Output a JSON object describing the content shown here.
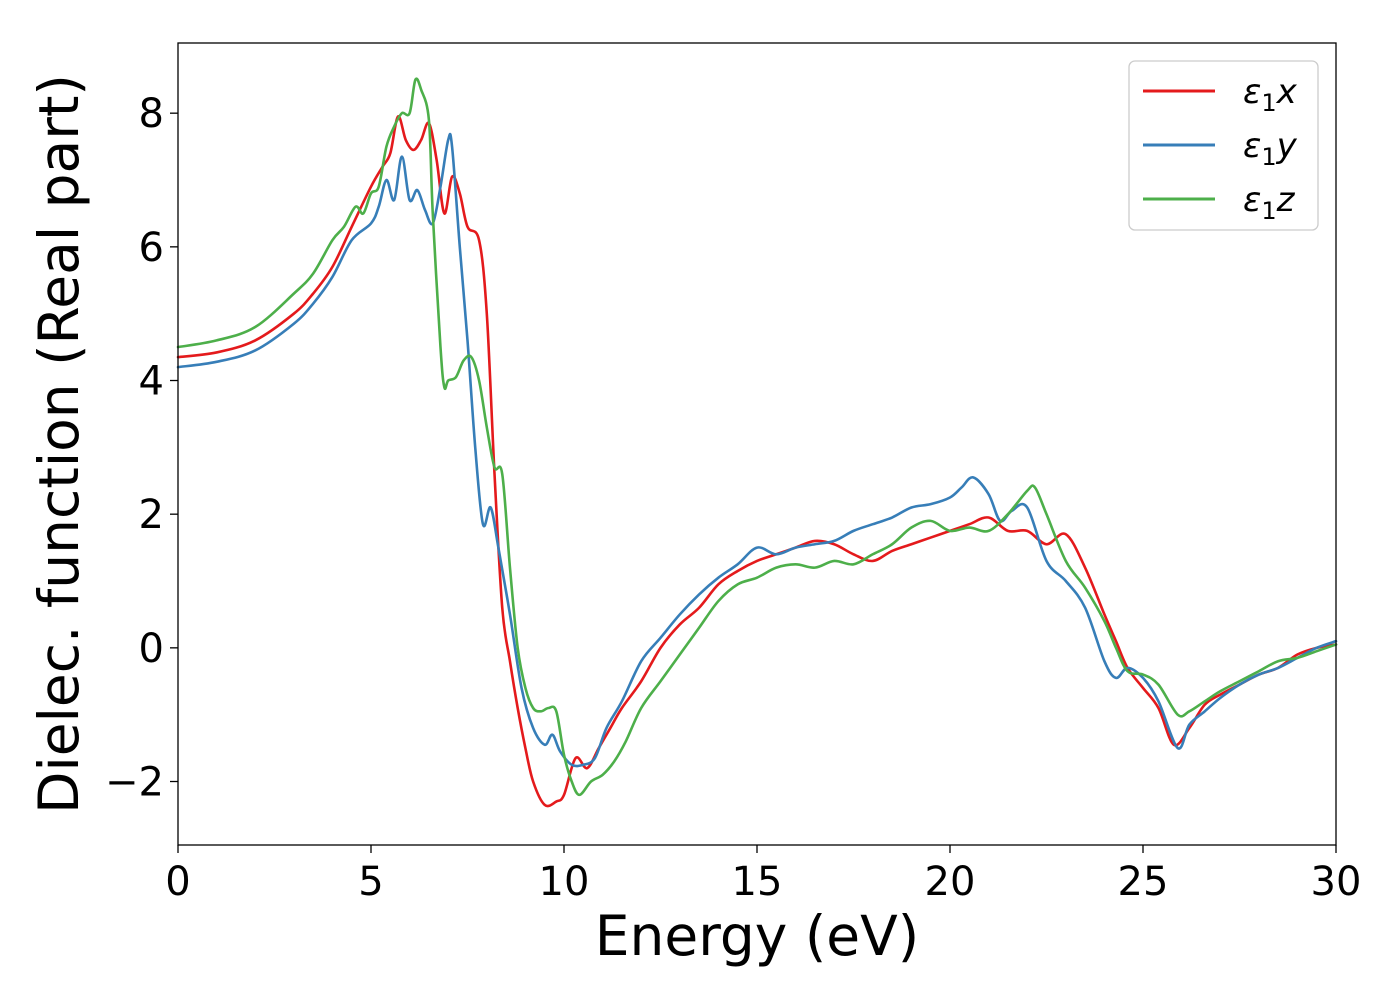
{
  "chart_data": {
    "type": "line",
    "title": "",
    "xlabel": "Energy (eV)",
    "ylabel": "Dielec. function (Real part)",
    "xlim": [
      0,
      30
    ],
    "ylim": [
      -2.95,
      9.05
    ],
    "xticks": [
      0,
      5,
      10,
      15,
      20,
      25,
      30
    ],
    "xtick_labels": [
      "0",
      "5",
      "10",
      "15",
      "20",
      "25",
      "30"
    ],
    "yticks": [
      -2,
      0,
      2,
      4,
      6,
      8
    ],
    "ytick_labels": [
      "−2",
      "0",
      "2",
      "4",
      "6",
      "8"
    ],
    "grid": false,
    "legend_position": "top-right",
    "series": [
      {
        "name": "ε",
        "name_sub": "1",
        "name_suffix": "x",
        "color": "#e41a1c",
        "x": [
          0,
          1,
          2,
          3,
          3.5,
          4,
          4.5,
          5,
          5.3,
          5.5,
          5.7,
          5.9,
          6.1,
          6.3,
          6.5,
          6.7,
          6.9,
          7.1,
          7.3,
          7.5,
          7.8,
          8.0,
          8.2,
          8.4,
          8.6,
          8.8,
          9.0,
          9.2,
          9.5,
          9.8,
          10.0,
          10.3,
          10.6,
          10.9,
          11.2,
          11.5,
          12,
          12.5,
          13,
          13.5,
          14,
          14.5,
          15,
          15.5,
          16,
          16.5,
          17,
          17.5,
          18,
          18.5,
          19,
          19.5,
          20,
          20.5,
          21,
          21.5,
          22,
          22.5,
          23,
          23.5,
          24,
          24.3,
          24.6,
          25,
          25.4,
          25.8,
          26.2,
          26.6,
          27,
          27.5,
          28,
          28.5,
          29,
          29.5,
          30
        ],
        "y": [
          4.35,
          4.42,
          4.6,
          5.0,
          5.3,
          5.7,
          6.3,
          6.9,
          7.2,
          7.4,
          7.95,
          7.6,
          7.45,
          7.6,
          7.85,
          7.3,
          6.5,
          7.05,
          6.8,
          6.3,
          6.1,
          5.0,
          2.6,
          0.6,
          -0.2,
          -0.9,
          -1.5,
          -2.0,
          -2.35,
          -2.3,
          -2.2,
          -1.65,
          -1.8,
          -1.5,
          -1.2,
          -0.9,
          -0.5,
          0.0,
          0.35,
          0.6,
          0.95,
          1.15,
          1.3,
          1.4,
          1.5,
          1.6,
          1.55,
          1.4,
          1.3,
          1.45,
          1.55,
          1.65,
          1.75,
          1.85,
          1.95,
          1.75,
          1.75,
          1.55,
          1.7,
          1.2,
          0.5,
          0.1,
          -0.3,
          -0.6,
          -0.9,
          -1.45,
          -1.2,
          -0.85,
          -0.7,
          -0.55,
          -0.4,
          -0.3,
          -0.1,
          0.0,
          0.05
        ]
      },
      {
        "name": "ε",
        "name_sub": "1",
        "name_suffix": "y",
        "color": "#377eb8",
        "x": [
          0,
          1,
          2,
          3,
          3.5,
          4,
          4.5,
          5,
          5.2,
          5.4,
          5.6,
          5.8,
          6.0,
          6.2,
          6.4,
          6.6,
          6.8,
          7.0,
          7.1,
          7.3,
          7.5,
          7.7,
          7.9,
          8.1,
          8.3,
          8.6,
          8.9,
          9.2,
          9.5,
          9.7,
          9.9,
          10.2,
          10.5,
          10.8,
          11.1,
          11.5,
          12,
          12.5,
          13,
          13.5,
          14,
          14.5,
          15,
          15.5,
          16,
          16.5,
          17,
          17.5,
          18,
          18.5,
          19,
          19.5,
          20,
          20.3,
          20.6,
          21,
          21.3,
          21.6,
          22,
          22.5,
          23,
          23.5,
          24,
          24.3,
          24.6,
          25,
          25.4,
          25.9,
          26.2,
          26.6,
          27,
          27.5,
          28,
          28.5,
          29,
          29.5,
          30
        ],
        "y": [
          4.2,
          4.28,
          4.45,
          4.85,
          5.15,
          5.55,
          6.1,
          6.35,
          6.6,
          7.0,
          6.7,
          7.35,
          6.7,
          6.85,
          6.55,
          6.35,
          6.9,
          7.6,
          7.5,
          6.0,
          4.6,
          3.0,
          1.85,
          2.1,
          1.5,
          0.5,
          -0.6,
          -1.2,
          -1.45,
          -1.3,
          -1.55,
          -1.75,
          -1.75,
          -1.65,
          -1.2,
          -0.8,
          -0.2,
          0.15,
          0.5,
          0.8,
          1.05,
          1.25,
          1.5,
          1.4,
          1.5,
          1.55,
          1.6,
          1.75,
          1.85,
          1.95,
          2.1,
          2.15,
          2.25,
          2.4,
          2.55,
          2.3,
          1.9,
          2.05,
          2.1,
          1.3,
          1.0,
          0.6,
          -0.2,
          -0.45,
          -0.3,
          -0.45,
          -0.8,
          -1.5,
          -1.15,
          -0.95,
          -0.75,
          -0.55,
          -0.4,
          -0.3,
          -0.15,
          0.0,
          0.1
        ]
      },
      {
        "name": "ε",
        "name_sub": "1",
        "name_suffix": "z",
        "color": "#4daf4a",
        "x": [
          0,
          1,
          2,
          3,
          3.5,
          4,
          4.3,
          4.6,
          4.8,
          5.0,
          5.2,
          5.4,
          5.6,
          5.8,
          6.0,
          6.15,
          6.3,
          6.5,
          6.6,
          6.8,
          6.9,
          7.0,
          7.2,
          7.4,
          7.6,
          7.8,
          8.0,
          8.2,
          8.4,
          8.6,
          8.8,
          9.0,
          9.2,
          9.4,
          9.6,
          9.8,
          10.0,
          10.2,
          10.4,
          10.7,
          11.0,
          11.3,
          11.6,
          12,
          12.5,
          13,
          13.5,
          14,
          14.5,
          15,
          15.5,
          16,
          16.5,
          17,
          17.5,
          18,
          18.5,
          19,
          19.5,
          20,
          20.5,
          21,
          21.5,
          22,
          22.2,
          22.5,
          23,
          23.5,
          24,
          24.3,
          24.6,
          25,
          25.4,
          25.9,
          26.2,
          26.6,
          27,
          27.5,
          28,
          28.5,
          29,
          29.5,
          30
        ],
        "y": [
          4.5,
          4.6,
          4.8,
          5.3,
          5.6,
          6.1,
          6.3,
          6.6,
          6.5,
          6.8,
          6.9,
          7.5,
          7.8,
          8.0,
          8.0,
          8.5,
          8.35,
          7.9,
          6.5,
          4.5,
          3.9,
          4.0,
          4.05,
          4.3,
          4.35,
          4.0,
          3.3,
          2.7,
          2.6,
          1.2,
          0.0,
          -0.6,
          -0.9,
          -0.95,
          -0.9,
          -0.95,
          -1.6,
          -2.0,
          -2.2,
          -2.0,
          -1.9,
          -1.7,
          -1.4,
          -0.9,
          -0.5,
          -0.1,
          0.3,
          0.7,
          0.95,
          1.05,
          1.2,
          1.25,
          1.2,
          1.3,
          1.25,
          1.4,
          1.55,
          1.8,
          1.9,
          1.75,
          1.8,
          1.75,
          2.0,
          2.35,
          2.4,
          2.0,
          1.3,
          0.9,
          0.4,
          0.0,
          -0.35,
          -0.4,
          -0.55,
          -1.0,
          -0.95,
          -0.8,
          -0.65,
          -0.5,
          -0.35,
          -0.2,
          -0.15,
          -0.05,
          0.05
        ]
      }
    ]
  }
}
